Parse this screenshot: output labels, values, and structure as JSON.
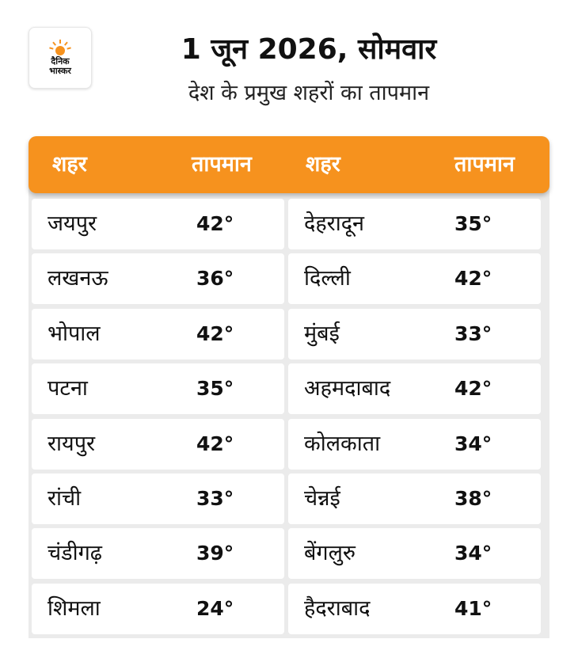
{
  "logo": {
    "line1": "दैनिक",
    "line2": "भास्कर",
    "icon": "sun-icon",
    "accent": "#f6921e"
  },
  "header": {
    "title": "1 जून 2026, सोमवार",
    "subtitle": "देश के प्रमुख शहरों का तापमान"
  },
  "table": {
    "header_color": "#f6921e",
    "columns": [
      "शहर",
      "तापमान",
      "शहर",
      "तापमान"
    ],
    "rows": [
      {
        "city_left": "जयपुर",
        "temp_left": "42°",
        "city_right": "देहरादून",
        "temp_right": "35°"
      },
      {
        "city_left": "लखनऊ",
        "temp_left": "36°",
        "city_right": "दिल्ली",
        "temp_right": "42°"
      },
      {
        "city_left": "भोपाल",
        "temp_left": "42°",
        "city_right": "मुंबई",
        "temp_right": "33°"
      },
      {
        "city_left": "पटना",
        "temp_left": "35°",
        "city_right": "अहमदाबाद",
        "temp_right": "42°"
      },
      {
        "city_left": "रायपुर",
        "temp_left": "42°",
        "city_right": "कोलकाता",
        "temp_right": "34°"
      },
      {
        "city_left": "रांची",
        "temp_left": "33°",
        "city_right": "चेन्नई",
        "temp_right": "38°"
      },
      {
        "city_left": "चंडीगढ़",
        "temp_left": "39°",
        "city_right": "बेंगलुरु",
        "temp_right": "34°"
      },
      {
        "city_left": "शिमला",
        "temp_left": "24°",
        "city_right": "हैदराबाद",
        "temp_right": "41°"
      }
    ]
  }
}
